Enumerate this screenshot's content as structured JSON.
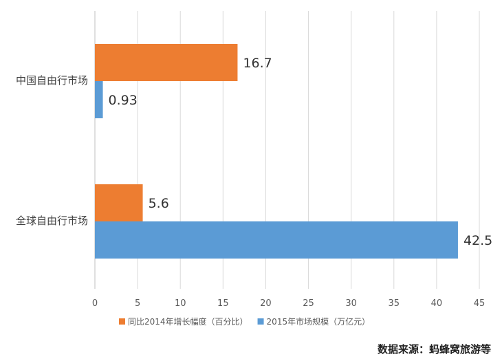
{
  "chart_data": {
    "type": "bar",
    "orientation": "horizontal",
    "categories": [
      "中国自由行市场",
      "全球自由行市场"
    ],
    "series": [
      {
        "name": "同比2014年增长幅度（百分比）",
        "color": "#ED7D31",
        "values": [
          16.7,
          5.6
        ]
      },
      {
        "name": "2015年市场规模（万亿元）",
        "color": "#5B9BD5",
        "values": [
          0.93,
          42.5
        ]
      }
    ],
    "data_labels": [
      [
        "16.7",
        "5.6"
      ],
      [
        "0.93",
        "42.5"
      ]
    ],
    "xlim": [
      0,
      45
    ],
    "xticks": [
      "0",
      "5",
      "10",
      "15",
      "20",
      "25",
      "30",
      "35",
      "40",
      "45"
    ],
    "grid": "vertical",
    "legend_position": "bottom"
  },
  "source": "数据来源：蚂蜂窝旅游等"
}
